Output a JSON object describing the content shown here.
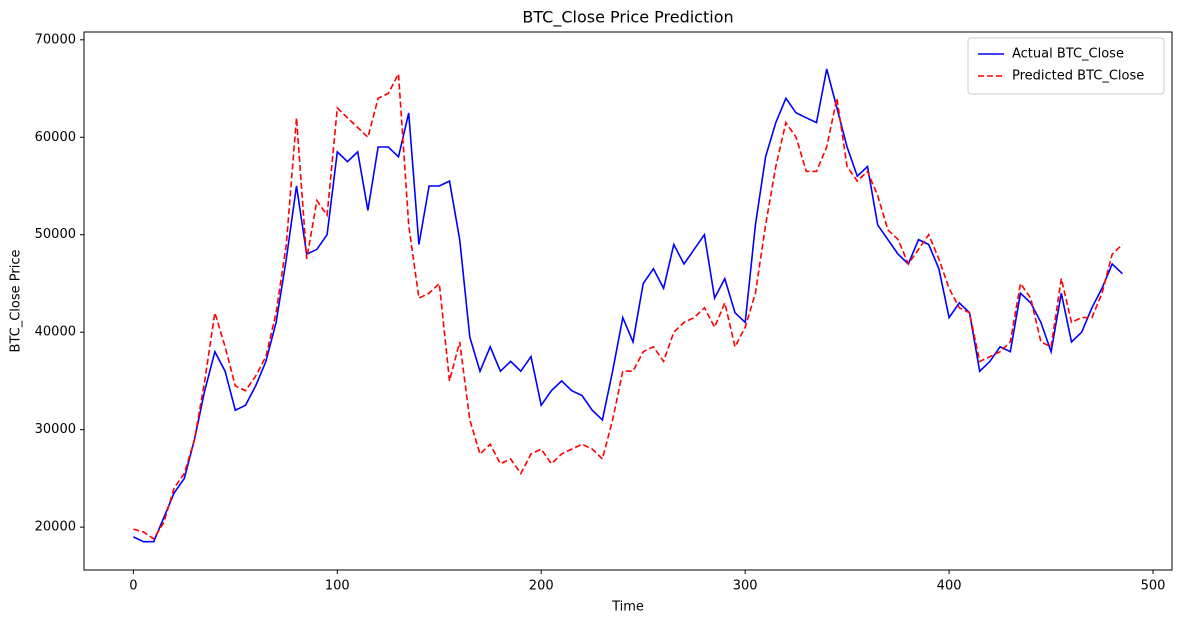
{
  "chart_data": {
    "type": "line",
    "title": "BTC_Close Price Prediction",
    "x_label": "Time",
    "y_label": "BTC_Close Price",
    "x": [
      0,
      5,
      10,
      15,
      20,
      25,
      30,
      35,
      40,
      45,
      50,
      55,
      60,
      65,
      70,
      75,
      80,
      85,
      90,
      95,
      100,
      105,
      110,
      115,
      120,
      125,
      130,
      135,
      140,
      145,
      150,
      155,
      160,
      165,
      170,
      175,
      180,
      185,
      190,
      195,
      200,
      205,
      210,
      215,
      220,
      225,
      230,
      235,
      240,
      245,
      250,
      255,
      260,
      265,
      270,
      275,
      280,
      285,
      290,
      295,
      300,
      305,
      310,
      315,
      320,
      325,
      330,
      335,
      340,
      345,
      350,
      355,
      360,
      365,
      370,
      375,
      380,
      385,
      390,
      395,
      400,
      405,
      410,
      415,
      420,
      425,
      430,
      435,
      440,
      445,
      450,
      455,
      460,
      465,
      470,
      475,
      480,
      485
    ],
    "series": [
      {
        "name": "Actual BTC_Close",
        "color": "#0000ff",
        "linestyle": "solid",
        "values": [
          19000,
          18500,
          18500,
          21000,
          23500,
          25000,
          29000,
          34000,
          38000,
          36000,
          32000,
          32500,
          34500,
          37000,
          41000,
          47500,
          55000,
          48000,
          48500,
          50000,
          58500,
          57500,
          58500,
          52500,
          59000,
          59000,
          58000,
          62500,
          49000,
          55000,
          55000,
          55500,
          49500,
          39500,
          36000,
          38500,
          36000,
          37000,
          36000,
          37500,
          32500,
          34000,
          35000,
          34000,
          33500,
          32000,
          31000,
          36000,
          41500,
          39000,
          45000,
          46500,
          44500,
          49000,
          47000,
          48500,
          50000,
          43500,
          45500,
          42000,
          41000,
          51000,
          58000,
          61500,
          64000,
          62500,
          62000,
          61500,
          67000,
          63000,
          59000,
          56000,
          57000,
          51000,
          49500,
          48000,
          47000,
          49500,
          49000,
          46500,
          41500,
          43000,
          42000,
          36000,
          37000,
          38500,
          38000,
          44000,
          43000,
          41000,
          38000,
          44000,
          39000,
          40000,
          42500,
          44500,
          47000,
          46000
        ]
      },
      {
        "name": "Predicted BTC_Close",
        "color": "#ff0000",
        "linestyle": "dashed",
        "values": [
          19800,
          19500,
          18800,
          20500,
          24000,
          25500,
          29000,
          35000,
          42000,
          38500,
          34500,
          34000,
          35500,
          37500,
          42000,
          49000,
          62000,
          47500,
          53500,
          52000,
          63000,
          62000,
          61000,
          60000,
          64000,
          64500,
          66500,
          51000,
          43500,
          44000,
          45000,
          35000,
          39000,
          31000,
          27500,
          28500,
          26500,
          27000,
          25500,
          27500,
          28000,
          26500,
          27500,
          28000,
          28500,
          28000,
          27000,
          31000,
          36000,
          36000,
          38000,
          38500,
          37000,
          40000,
          41000,
          41500,
          42500,
          40500,
          43000,
          38500,
          40500,
          44000,
          51000,
          57000,
          61500,
          60000,
          56500,
          56500,
          59000,
          64000,
          57000,
          55500,
          56500,
          54000,
          50500,
          49500,
          47000,
          48500,
          50000,
          47500,
          44500,
          42500,
          42000,
          37000,
          37500,
          38000,
          39000,
          45000,
          43500,
          39000,
          38500,
          45500,
          41000,
          41500,
          41500,
          44000,
          48000,
          49000
        ]
      }
    ],
    "xlim": [
      -24.2,
      509.3
    ],
    "xticks": [
      0,
      100,
      200,
      300,
      400,
      500
    ],
    "ylim": [
      15600,
      70800
    ],
    "yticks": [
      20000,
      30000,
      40000,
      50000,
      60000,
      70000
    ],
    "legend": "upper right"
  }
}
